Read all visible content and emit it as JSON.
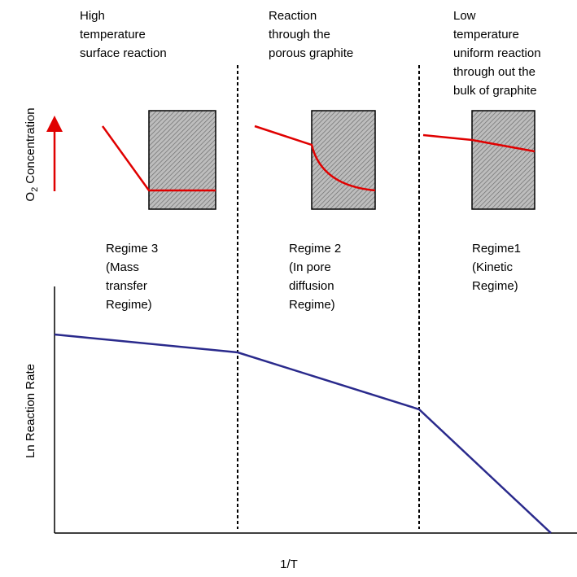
{
  "header_notes": [
    {
      "lines": [
        "High",
        "temperature",
        "surface reaction"
      ]
    },
    {
      "lines": [
        "Reaction",
        "through the",
        "porous graphite"
      ]
    },
    {
      "lines": [
        "Low",
        "temperature",
        "uniform reaction",
        "through out the",
        "bulk of graphite"
      ]
    }
  ],
  "regimes": [
    {
      "lines": [
        "Regime 3",
        "(Mass",
        "transfer",
        "Regime)"
      ]
    },
    {
      "lines": [
        "Regime 2",
        "(In pore",
        "diffusion",
        "Regime)"
      ]
    },
    {
      "lines": [
        "Regime1",
        "(Kinetic",
        "Regime)"
      ]
    }
  ],
  "concentration_axis": {
    "symbol": "O",
    "subscript": "2",
    "text": "Concentration"
  },
  "y_axis_label": "Ln Reaction Rate",
  "x_axis_label": "1/T"
}
